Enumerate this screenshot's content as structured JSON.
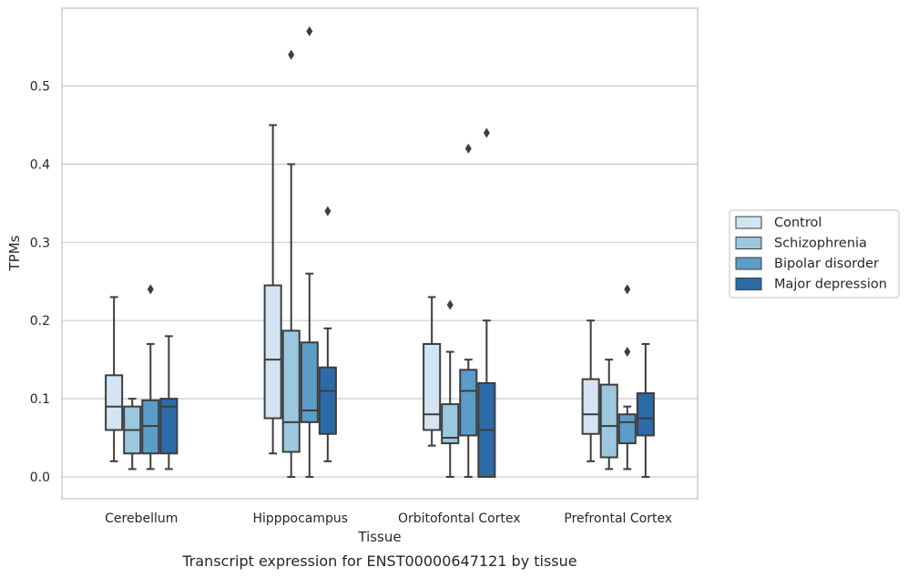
{
  "chart_data": {
    "type": "box",
    "title": "",
    "caption": "Transcript expression for ENST00000647121 by tissue",
    "xlabel": "Tissue",
    "ylabel": "TPMs",
    "ylim": [
      -0.028,
      0.6
    ],
    "yticks": [
      0.0,
      0.1,
      0.2,
      0.3,
      0.4,
      0.5
    ],
    "ytick_labels": [
      "0.0",
      "0.1",
      "0.2",
      "0.3",
      "0.4",
      "0.5"
    ],
    "grid": true,
    "legend_position": "right",
    "categories": [
      "Cerebellum",
      "Hipppocampus",
      "Orbitofontal Cortex",
      "Prefrontal Cortex"
    ],
    "series": [
      {
        "name": "Control",
        "color": "#d3e4f3",
        "boxes": [
          {
            "whislo": 0.02,
            "q1": 0.06,
            "med": 0.09,
            "q3": 0.13,
            "whishi": 0.23,
            "fliers": []
          },
          {
            "whislo": 0.03,
            "q1": 0.075,
            "med": 0.15,
            "q3": 0.245,
            "whishi": 0.45,
            "fliers": []
          },
          {
            "whislo": 0.04,
            "q1": 0.06,
            "med": 0.08,
            "q3": 0.17,
            "whishi": 0.23,
            "fliers": []
          },
          {
            "whislo": 0.02,
            "q1": 0.055,
            "med": 0.08,
            "q3": 0.125,
            "whishi": 0.2,
            "fliers": []
          }
        ]
      },
      {
        "name": "Schizophrenia",
        "color": "#9bc7df",
        "boxes": [
          {
            "whislo": 0.01,
            "q1": 0.03,
            "med": 0.06,
            "q3": 0.09,
            "whishi": 0.1,
            "fliers": []
          },
          {
            "whislo": 0.0,
            "q1": 0.032,
            "med": 0.07,
            "q3": 0.187,
            "whishi": 0.4,
            "fliers": [
              0.54
            ]
          },
          {
            "whislo": 0.0,
            "q1": 0.043,
            "med": 0.05,
            "q3": 0.093,
            "whishi": 0.16,
            "fliers": [
              0.22
            ]
          },
          {
            "whislo": 0.01,
            "q1": 0.025,
            "med": 0.065,
            "q3": 0.118,
            "whishi": 0.15,
            "fliers": []
          }
        ]
      },
      {
        "name": "Bipolar disorder",
        "color": "#5b9cc8",
        "boxes": [
          {
            "whislo": 0.01,
            "q1": 0.03,
            "med": 0.065,
            "q3": 0.098,
            "whishi": 0.17,
            "fliers": [
              0.24
            ]
          },
          {
            "whislo": 0.0,
            "q1": 0.07,
            "med": 0.085,
            "q3": 0.172,
            "whishi": 0.26,
            "fliers": [
              0.57
            ]
          },
          {
            "whislo": 0.0,
            "q1": 0.053,
            "med": 0.11,
            "q3": 0.137,
            "whishi": 0.15,
            "fliers": [
              0.42
            ]
          },
          {
            "whislo": 0.01,
            "q1": 0.043,
            "med": 0.07,
            "q3": 0.08,
            "whishi": 0.09,
            "fliers": [
              0.16,
              0.24
            ]
          }
        ]
      },
      {
        "name": "Major depression",
        "color": "#2b6ba8",
        "boxes": [
          {
            "whislo": 0.01,
            "q1": 0.03,
            "med": 0.09,
            "q3": 0.1,
            "whishi": 0.18,
            "fliers": []
          },
          {
            "whislo": 0.02,
            "q1": 0.055,
            "med": 0.11,
            "q3": 0.14,
            "whishi": 0.19,
            "fliers": [
              0.34
            ]
          },
          {
            "whislo": 0.0,
            "q1": 0.0,
            "med": 0.06,
            "q3": 0.12,
            "whishi": 0.2,
            "fliers": [
              0.44
            ]
          },
          {
            "whislo": 0.0,
            "q1": 0.053,
            "med": 0.075,
            "q3": 0.107,
            "whishi": 0.17,
            "fliers": []
          }
        ]
      }
    ]
  }
}
